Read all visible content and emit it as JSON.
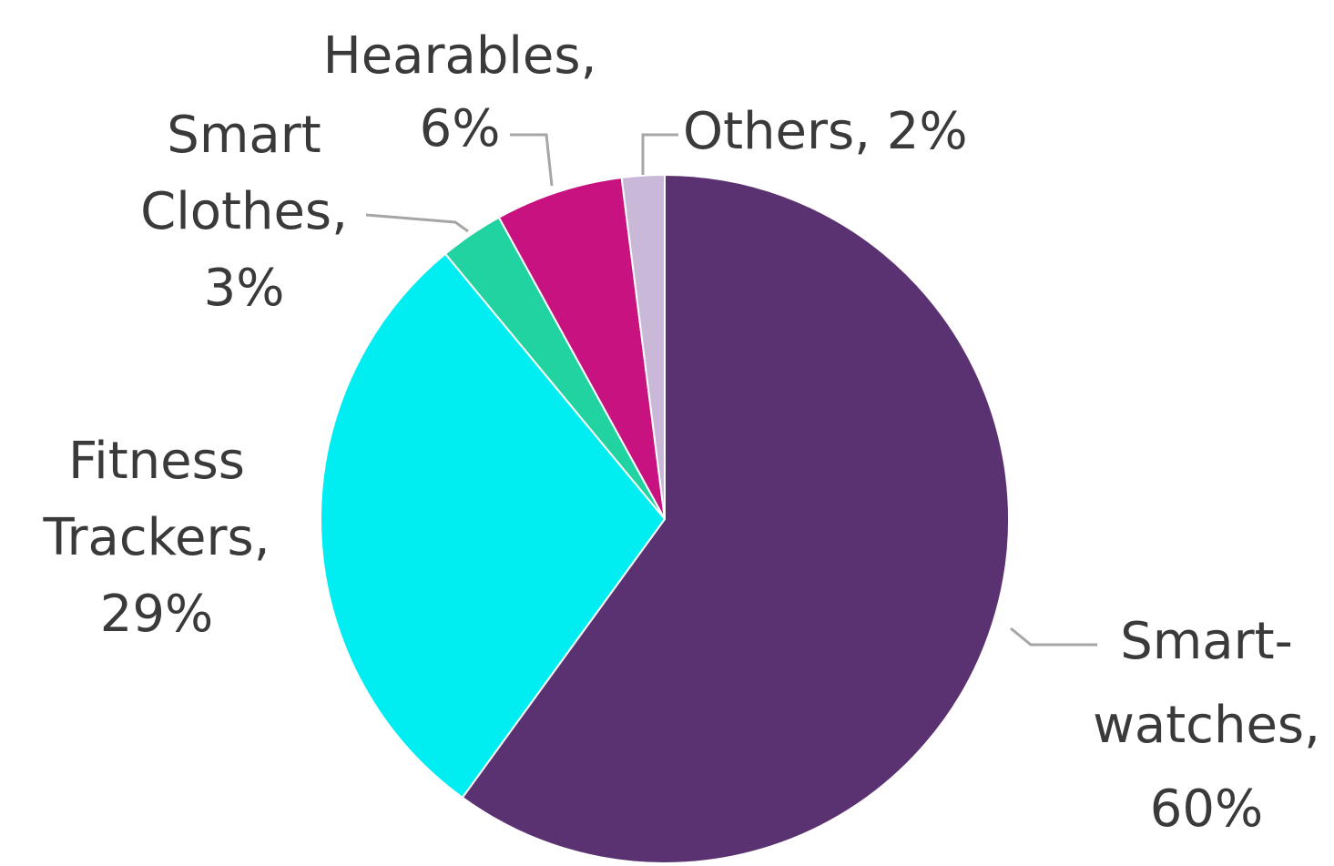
{
  "chart_data": {
    "type": "pie",
    "start_angle_deg": 0,
    "direction": "clockwise",
    "slices": [
      {
        "label": [
          "Smart-",
          "watches,",
          "60%"
        ],
        "value": 60,
        "color": "#5b3271"
      },
      {
        "label": [
          "Fitness",
          "Trackers,",
          "29%"
        ],
        "value": 29,
        "color": "#00eef2"
      },
      {
        "label": [
          "Smart",
          "Clothes,",
          "3%"
        ],
        "value": 3,
        "color": "#20d3a0"
      },
      {
        "label": [
          "Hearables,",
          "6%"
        ],
        "value": 6,
        "color": "#c7127f"
      },
      {
        "label": [
          "Others, 2%"
        ],
        "value": 2,
        "color": "#c9b8d7"
      }
    ],
    "leader_line_color": "#a6a6a6",
    "label_color": "#3a3a3a",
    "legend": "none"
  }
}
